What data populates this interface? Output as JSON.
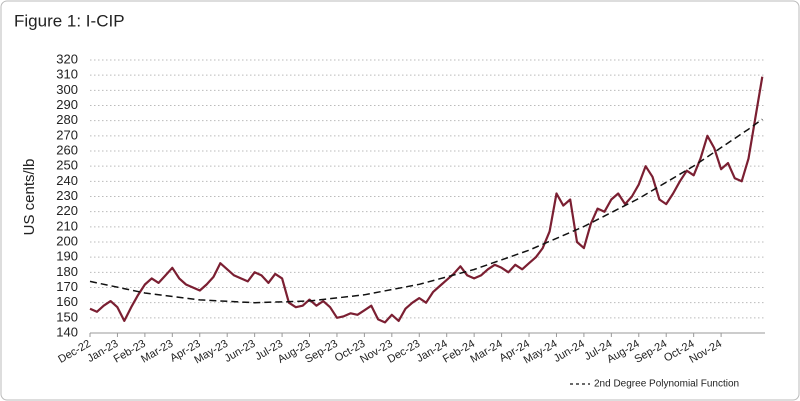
{
  "chart_data": {
    "type": "line",
    "title": "Figure 1: I-CIP",
    "y_label": "US cents/lb",
    "xlim": [
      0,
      24.6
    ],
    "ylim": [
      140,
      320
    ],
    "yticks": [
      140,
      150,
      160,
      170,
      180,
      190,
      200,
      210,
      220,
      230,
      240,
      250,
      260,
      270,
      280,
      290,
      300,
      310,
      320
    ],
    "xticks": [
      {
        "value": 0,
        "label": "Dec-22"
      },
      {
        "value": 1,
        "label": "Jan-23"
      },
      {
        "value": 2,
        "label": "Feb-23"
      },
      {
        "value": 3,
        "label": "Mar-23"
      },
      {
        "value": 4,
        "label": "Apr-23"
      },
      {
        "value": 5,
        "label": "May-23"
      },
      {
        "value": 6,
        "label": "Jun-23"
      },
      {
        "value": 7,
        "label": "Jul-23"
      },
      {
        "value": 8,
        "label": "Aug-23"
      },
      {
        "value": 9,
        "label": "Sep-23"
      },
      {
        "value": 10,
        "label": "Oct-23"
      },
      {
        "value": 11,
        "label": "Nov-23"
      },
      {
        "value": 12,
        "label": "Dec-23"
      },
      {
        "value": 13,
        "label": "Jan-24"
      },
      {
        "value": 14,
        "label": "Feb-24"
      },
      {
        "value": 15,
        "label": "Mar-24"
      },
      {
        "value": 16,
        "label": "Apr-24"
      },
      {
        "value": 17,
        "label": "May-24"
      },
      {
        "value": 18,
        "label": "Jun-24"
      },
      {
        "value": 19,
        "label": "Jul-24"
      },
      {
        "value": 20,
        "label": "Aug-24"
      },
      {
        "value": 21,
        "label": "Sep-24"
      },
      {
        "value": 22,
        "label": "Oct-24"
      },
      {
        "value": 23,
        "label": "Nov-24"
      }
    ],
    "grid": true,
    "series": [
      {
        "color": "#7b1f32",
        "dashed": false,
        "x": [
          0,
          0.25,
          0.5,
          0.75,
          1,
          1.25,
          1.5,
          1.75,
          2,
          2.25,
          2.5,
          2.75,
          3,
          3.25,
          3.5,
          3.75,
          4,
          4.25,
          4.5,
          4.75,
          5,
          5.25,
          5.5,
          5.75,
          6,
          6.25,
          6.5,
          6.75,
          7,
          7.25,
          7.5,
          7.75,
          8,
          8.25,
          8.5,
          8.75,
          9,
          9.25,
          9.5,
          9.75,
          10,
          10.25,
          10.5,
          10.75,
          11,
          11.25,
          11.5,
          11.75,
          12,
          12.25,
          12.5,
          12.75,
          13,
          13.25,
          13.5,
          13.75,
          14,
          14.25,
          14.5,
          14.75,
          15,
          15.25,
          15.5,
          15.75,
          16,
          16.25,
          16.5,
          16.75,
          17,
          17.25,
          17.5,
          17.75,
          18,
          18.25,
          18.5,
          18.75,
          19,
          19.25,
          19.5,
          19.75,
          20,
          20.25,
          20.5,
          20.75,
          21,
          21.25,
          21.5,
          21.75,
          22,
          22.25,
          22.5,
          22.75,
          23,
          23.25,
          23.5,
          23.75,
          24,
          24.25,
          24.5
        ],
        "values": [
          156,
          154,
          158,
          161,
          157,
          148,
          157,
          165,
          172,
          176,
          173,
          178,
          183,
          176,
          172,
          170,
          168,
          172,
          177,
          186,
          182,
          178,
          176,
          174,
          180,
          178,
          173,
          179,
          176,
          160,
          157,
          158,
          162,
          158,
          161,
          157,
          150,
          151,
          153,
          152,
          155,
          158,
          149,
          147,
          152,
          148,
          156,
          160,
          163,
          160,
          167,
          171,
          175,
          179,
          184,
          178,
          176,
          178,
          182,
          185,
          183,
          180,
          185,
          182,
          186,
          190,
          196,
          207,
          232,
          224,
          228,
          200,
          196,
          212,
          222,
          220,
          228,
          232,
          225,
          230,
          238,
          250,
          243,
          228,
          225,
          232,
          240,
          247,
          244,
          255,
          270,
          262,
          248,
          252,
          242,
          240,
          255,
          282,
          309
        ]
      },
      {
        "name": "2nd Degree Polynomial Function",
        "color": "#111111",
        "dashed": true,
        "x": [
          0,
          2,
          4,
          6,
          8,
          10,
          12,
          14,
          16,
          18,
          20,
          22,
          24,
          24.5
        ],
        "values": [
          174.0,
          166.4,
          161.8,
          160.0,
          161.1,
          165.2,
          172.1,
          181.9,
          194.6,
          210.2,
          228.7,
          250.1,
          274.4,
          281.0
        ]
      }
    ]
  }
}
